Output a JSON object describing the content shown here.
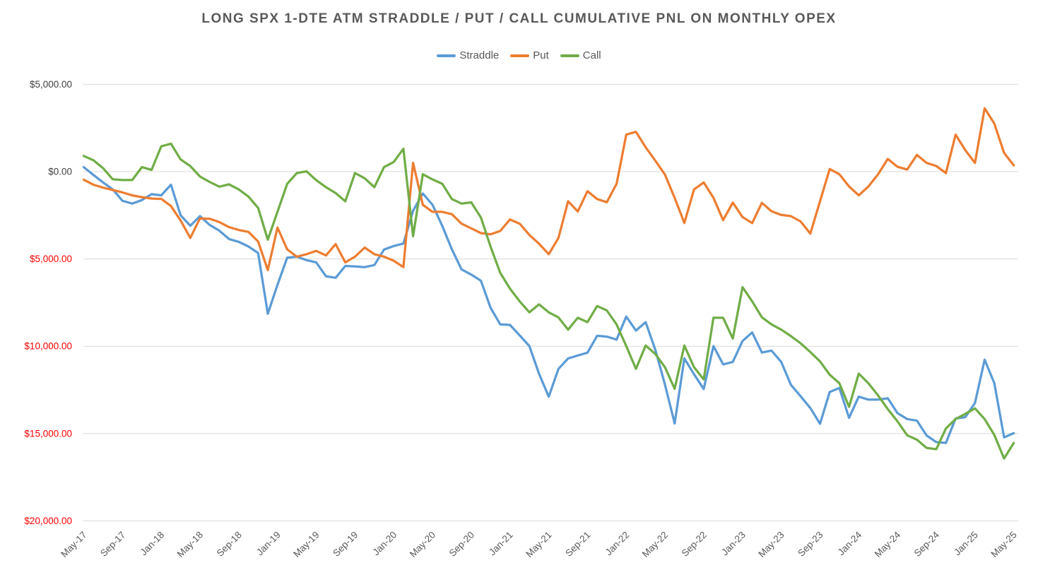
{
  "chart_data": {
    "type": "line",
    "title": "LONG SPX 1-DTE ATM STRADDLE / PUT / CALL CUMULATIVE PNL ON MONTHLY OPEX",
    "xlabel": "",
    "ylabel": "",
    "x_frequency": "monthly",
    "x_start_month": "May-17",
    "x_end_month": "May-25",
    "x_points_count": 97,
    "x_tick_interval_months": 4,
    "x_tick_labels": [
      "May-17",
      "Sep-17",
      "Jan-18",
      "May-18",
      "Sep-18",
      "Jan-19",
      "May-19",
      "Sep-19",
      "Jan-20",
      "May-20",
      "Sep-20",
      "Jan-21",
      "May-21",
      "Sep-21",
      "Jan-22",
      "May-22",
      "Sep-22",
      "Jan-23",
      "May-23",
      "Sep-23",
      "Jan-24",
      "May-24",
      "Sep-24",
      "Jan-25",
      "May-25"
    ],
    "ylim": [
      -20000,
      5000
    ],
    "y_tick_step": 5000,
    "y_ticks": [
      {
        "label": "$5,000.00",
        "value": 5000,
        "color": "#404040"
      },
      {
        "label": "$0.00",
        "value": 0,
        "color": "#404040"
      },
      {
        "label": "$5,000.00",
        "value": -5000,
        "color": "#FF0000"
      },
      {
        "label": "$10,000.00",
        "value": -10000,
        "color": "#FF0000"
      },
      {
        "label": "$15,000.00",
        "value": -15000,
        "color": "#FF0000"
      },
      {
        "label": "$20,000.00",
        "value": -20000,
        "color": "#FF0000"
      }
    ],
    "grid": true,
    "gridline_color": "#D9D9D9",
    "axis_label_color": "#595959",
    "title_color": "#595959",
    "legend_position": "top",
    "series": [
      {
        "name": "Straddle",
        "color": "#5B9BD5",
        "values": [
          260,
          -190,
          -620,
          -1020,
          -1670,
          -1830,
          -1630,
          -1290,
          -1360,
          -750,
          -2500,
          -3100,
          -2550,
          -3050,
          -3380,
          -3860,
          -4020,
          -4290,
          -4660,
          -8140,
          -6480,
          -4930,
          -4870,
          -5070,
          -5200,
          -5990,
          -6080,
          -5400,
          -5430,
          -5470,
          -5350,
          -4460,
          -4260,
          -4120,
          -2240,
          -1250,
          -1900,
          -3100,
          -4450,
          -5600,
          -5900,
          -6250,
          -7800,
          -8750,
          -8780,
          -9380,
          -9990,
          -11580,
          -12890,
          -11300,
          -10700,
          -10530,
          -10370,
          -9400,
          -9450,
          -9620,
          -8300,
          -9100,
          -8620,
          -10200,
          -12200,
          -14420,
          -10700,
          -11600,
          -12450,
          -9990,
          -11040,
          -10900,
          -9700,
          -9210,
          -10360,
          -10250,
          -10900,
          -12210,
          -12860,
          -13540,
          -14440,
          -12620,
          -12390,
          -14100,
          -12890,
          -13060,
          -13060,
          -12980,
          -13830,
          -14170,
          -14260,
          -15110,
          -15490,
          -15540,
          -14140,
          -14060,
          -13250,
          -10770,
          -12120,
          -15220,
          -14980
        ]
      },
      {
        "name": "Put",
        "color": "#ED7D31",
        "values": [
          -460,
          -750,
          -920,
          -1050,
          -1190,
          -1360,
          -1460,
          -1540,
          -1560,
          -1970,
          -2800,
          -3800,
          -2680,
          -2700,
          -2890,
          -3180,
          -3340,
          -3450,
          -4000,
          -5640,
          -3200,
          -4450,
          -4870,
          -4730,
          -4540,
          -4800,
          -4150,
          -5200,
          -4870,
          -4350,
          -4730,
          -4870,
          -5100,
          -5470,
          500,
          -1900,
          -2300,
          -2300,
          -2440,
          -2980,
          -3250,
          -3520,
          -3590,
          -3400,
          -2740,
          -2980,
          -3630,
          -4130,
          -4730,
          -3800,
          -1700,
          -2280,
          -1120,
          -1570,
          -1750,
          -700,
          2120,
          2280,
          1400,
          630,
          -175,
          -1500,
          -2940,
          -1020,
          -620,
          -1500,
          -2780,
          -1770,
          -2600,
          -2950,
          -1790,
          -2270,
          -2480,
          -2550,
          -2850,
          -3550,
          -1700,
          150,
          -150,
          -850,
          -1360,
          -850,
          -150,
          730,
          280,
          120,
          960,
          500,
          325,
          -80,
          2120,
          1230,
          500,
          3630,
          2750,
          1070,
          360
        ]
      },
      {
        "name": "Call",
        "color": "#70AD47",
        "values": [
          900,
          650,
          200,
          -440,
          -480,
          -480,
          260,
          100,
          1450,
          1600,
          700,
          320,
          -280,
          -590,
          -860,
          -730,
          -1020,
          -1430,
          -2080,
          -3900,
          -2300,
          -700,
          -80,
          15,
          -490,
          -890,
          -1230,
          -1700,
          -80,
          -380,
          -890,
          260,
          550,
          1310,
          -3700,
          -150,
          -445,
          -690,
          -1570,
          -1830,
          -1760,
          -2630,
          -4300,
          -5800,
          -6700,
          -7430,
          -8060,
          -7600,
          -8060,
          -8350,
          -9050,
          -8370,
          -8620,
          -7700,
          -7950,
          -8750,
          -9990,
          -11300,
          -9960,
          -10440,
          -11200,
          -12440,
          -9960,
          -11200,
          -11900,
          -8370,
          -8370,
          -9560,
          -6620,
          -7430,
          -8340,
          -8750,
          -9050,
          -9420,
          -9830,
          -10330,
          -10870,
          -11630,
          -12120,
          -13470,
          -11570,
          -12120,
          -12820,
          -13600,
          -14300,
          -15100,
          -15350,
          -15820,
          -15900,
          -14710,
          -14170,
          -13870,
          -13560,
          -14170,
          -15080,
          -16430,
          -15540
        ]
      }
    ]
  }
}
